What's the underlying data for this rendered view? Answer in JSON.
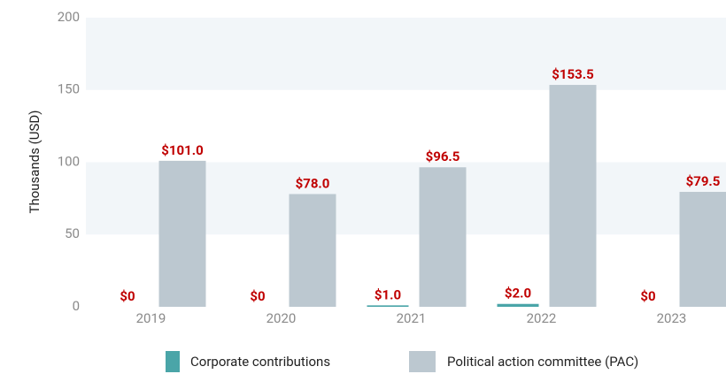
{
  "chart_data": {
    "type": "bar",
    "y_label": "Thousands (USD)",
    "categories": [
      "2019",
      "2020",
      "2021",
      "2022",
      "2023"
    ],
    "series": [
      {
        "name": "Corporate contributions",
        "color": "#4aa5a8",
        "values": [
          0,
          0,
          1.0,
          2.0,
          0
        ],
        "value_labels": [
          "$0",
          "$0",
          "$1.0",
          "$2.0",
          "$0"
        ]
      },
      {
        "name": "Political action committee (PAC)",
        "color": "#bcc8d0",
        "values": [
          101.0,
          78.0,
          96.5,
          153.5,
          79.5
        ],
        "value_labels": [
          "$101.0",
          "$78.0",
          "$96.5",
          "$153.5",
          "$79.5"
        ]
      }
    ],
    "ylim": [
      0,
      200
    ],
    "yticks": [
      0,
      50,
      100,
      150,
      200
    ],
    "grid": true,
    "label_color": "#c00000",
    "legend": "bottom"
  }
}
